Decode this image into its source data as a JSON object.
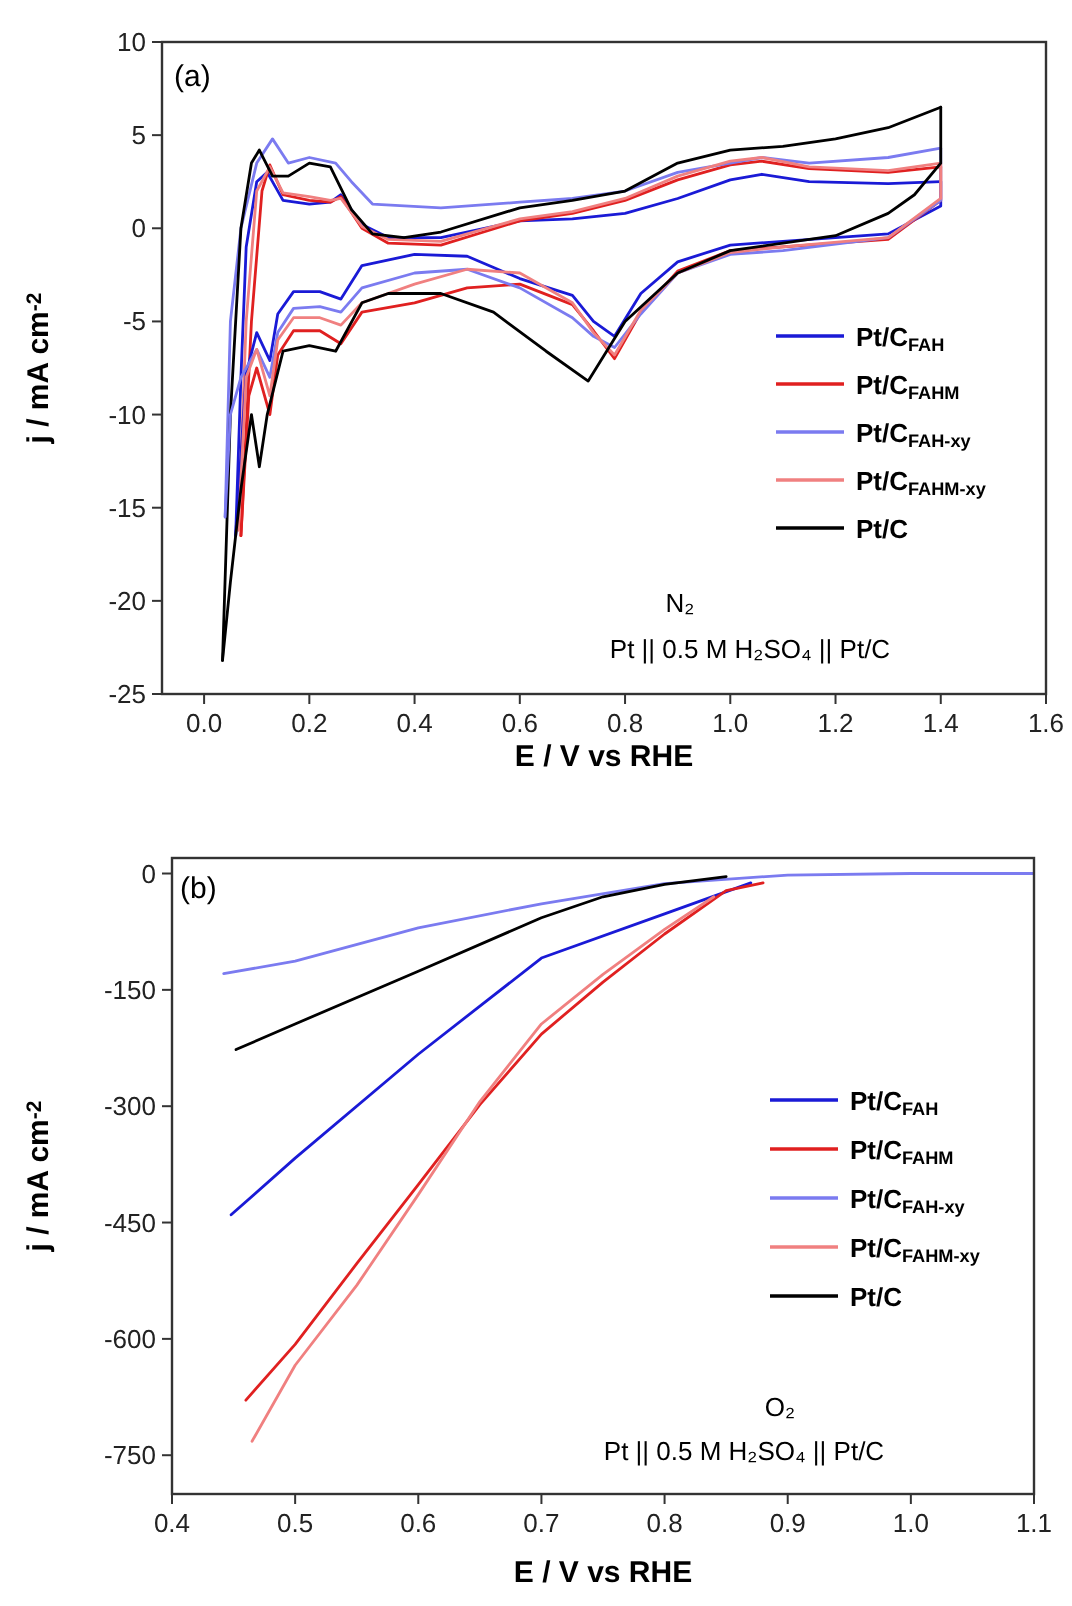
{
  "chart_data": [
    {
      "type": "line",
      "xlabel": "E / V vs RHE",
      "ylabel": "j / mA cm$^{-2}$",
      "xlim": [
        -0.08,
        1.6
      ],
      "ylim": [
        -25,
        10
      ],
      "xticks": [
        {
          "value": 0,
          "label": "0.0"
        },
        {
          "value": 0.2,
          "label": "0.2"
        },
        {
          "value": 0.4,
          "label": "0.4"
        },
        {
          "value": 0.6,
          "label": "0.6"
        },
        {
          "value": 0.8,
          "label": "0.8"
        },
        {
          "value": 1,
          "label": "1.0"
        },
        {
          "value": 1.2,
          "label": "1.2"
        },
        {
          "value": 1.4,
          "label": "1.4"
        },
        {
          "value": 1.6,
          "label": "1.6"
        }
      ],
      "yticks": [
        -25,
        -20,
        -15,
        -10,
        -5,
        0,
        5,
        10
      ],
      "grid": false,
      "legend": "right",
      "marker": "none",
      "line_style": "solid",
      "annotations": [
        "(a)",
        "N₂",
        "Pt || 0.5 M H₂SO₄ || Pt/C"
      ],
      "series": [
        {
          "name": "Pt/C$_{FAH}$",
          "color": "#1a1ad6",
          "x": [
            0.06,
            0.07,
            0.08,
            0.1,
            0.12,
            0.15,
            0.2,
            0.24,
            0.26,
            0.3,
            0.35,
            0.45,
            0.6,
            0.7,
            0.8,
            0.9,
            1.0,
            1.06,
            1.15,
            1.3,
            1.4
          ],
          "values": [
            -16.5,
            -8,
            -1,
            2.5,
            3.0,
            1.5,
            1.3,
            1.4,
            1.8,
            0.2,
            -0.5,
            -0.5,
            0.4,
            0.5,
            0.8,
            1.6,
            2.6,
            2.9,
            2.5,
            2.4,
            2.5
          ]
        },
        {
          "name": "Pt/C$_{FAHM}$",
          "color": "#e02020",
          "x": [
            0.07,
            0.09,
            0.11,
            0.125,
            0.15,
            0.2,
            0.24,
            0.26,
            0.3,
            0.35,
            0.45,
            0.6,
            0.7,
            0.8,
            0.9,
            1.0,
            1.06,
            1.15,
            1.3,
            1.4
          ],
          "values": [
            -16.5,
            -5,
            2,
            3.4,
            1.8,
            1.5,
            1.4,
            1.7,
            0.0,
            -0.8,
            -0.9,
            0.4,
            0.8,
            1.5,
            2.6,
            3.4,
            3.6,
            3.2,
            3.0,
            3.3
          ]
        },
        {
          "name": "Pt/C$_{FAH-xy}$",
          "color": "#7b7bf0",
          "x": [
            0.04,
            0.05,
            0.07,
            0.1,
            0.13,
            0.16,
            0.2,
            0.25,
            0.28,
            0.32,
            0.45,
            0.6,
            0.7,
            0.8,
            0.9,
            1.0,
            1.06,
            1.15,
            1.3,
            1.4
          ],
          "values": [
            -15.5,
            -5,
            0,
            3.5,
            4.8,
            3.5,
            3.8,
            3.5,
            2.5,
            1.3,
            1.1,
            1.4,
            1.6,
            2.0,
            3.0,
            3.5,
            3.8,
            3.5,
            3.8,
            4.3
          ]
        },
        {
          "name": "Pt/C$_{FAHM-xy}$",
          "color": "#f08080",
          "x": [
            0.065,
            0.08,
            0.1,
            0.125,
            0.15,
            0.2,
            0.24,
            0.26,
            0.3,
            0.35,
            0.45,
            0.6,
            0.7,
            0.8,
            0.9,
            1.0,
            1.06,
            1.15,
            1.3,
            1.4
          ],
          "values": [
            -16.2,
            -5,
            2,
            3.3,
            1.9,
            1.7,
            1.5,
            1.6,
            0.1,
            -0.6,
            -0.7,
            0.5,
            0.9,
            1.6,
            2.8,
            3.6,
            3.8,
            3.3,
            3.1,
            3.5
          ]
        },
        {
          "name": "Pt/C",
          "color": "#000000",
          "x": [
            0.035,
            0.05,
            0.07,
            0.09,
            0.105,
            0.13,
            0.16,
            0.2,
            0.24,
            0.28,
            0.32,
            0.38,
            0.45,
            0.6,
            0.7,
            0.8,
            0.9,
            1.0,
            1.1,
            1.2,
            1.3,
            1.4
          ],
          "values": [
            -23.2,
            -10,
            0,
            3.5,
            4.2,
            2.8,
            2.8,
            3.5,
            3.3,
            1.0,
            -0.3,
            -0.5,
            -0.2,
            1.1,
            1.5,
            2.0,
            3.5,
            4.2,
            4.4,
            4.8,
            5.4,
            6.5
          ]
        },
        {
          "color": "#1a1ad6",
          "x": [
            0.06,
            0.08,
            0.1,
            0.125,
            0.14,
            0.17,
            0.22,
            0.26,
            0.3,
            0.4,
            0.5,
            0.6,
            0.7,
            0.74,
            0.78,
            0.83,
            0.9,
            1.0,
            1.1,
            1.3,
            1.4,
            1.4
          ],
          "values": [
            -16.5,
            -7.8,
            -5.6,
            -7.1,
            -4.6,
            -3.4,
            -3.4,
            -3.8,
            -2.0,
            -1.4,
            -1.5,
            -2.7,
            -3.6,
            -5,
            -5.8,
            -3.5,
            -1.8,
            -0.9,
            -0.7,
            -0.3,
            1.2,
            2.5
          ]
        },
        {
          "color": "#e02020",
          "x": [
            0.07,
            0.085,
            0.1,
            0.125,
            0.14,
            0.17,
            0.22,
            0.26,
            0.3,
            0.4,
            0.5,
            0.6,
            0.7,
            0.74,
            0.78,
            0.83,
            0.9,
            1.0,
            1.1,
            1.3,
            1.4,
            1.4
          ],
          "values": [
            -16.5,
            -9,
            -7.5,
            -10.0,
            -6.8,
            -5.5,
            -5.5,
            -6.2,
            -4.5,
            -4.0,
            -3.2,
            -3.0,
            -4.1,
            -5.5,
            -7.0,
            -4.5,
            -2.3,
            -1.2,
            -1.0,
            -0.6,
            1.5,
            3.3
          ]
        },
        {
          "color": "#7b7bf0",
          "x": [
            0.04,
            0.05,
            0.07,
            0.1,
            0.125,
            0.14,
            0.17,
            0.22,
            0.26,
            0.3,
            0.4,
            0.5,
            0.6,
            0.7,
            0.74,
            0.78,
            0.83,
            0.9,
            1.0,
            1.1,
            1.3,
            1.4,
            1.4
          ],
          "values": [
            -15.5,
            -10,
            -8,
            -6.5,
            -8.0,
            -5.6,
            -4.3,
            -4.2,
            -4.5,
            -3.2,
            -2.4,
            -2.2,
            -3.2,
            -4.8,
            -5.8,
            -6.4,
            -4.6,
            -2.4,
            -1.4,
            -1.2,
            -0.5,
            1.5,
            4.3
          ]
        },
        {
          "color": "#f08080",
          "x": [
            0.065,
            0.08,
            0.1,
            0.125,
            0.14,
            0.17,
            0.22,
            0.26,
            0.3,
            0.4,
            0.5,
            0.6,
            0.7,
            0.74,
            0.78,
            0.83,
            0.9,
            1.0,
            1.1,
            1.3,
            1.4,
            1.4
          ],
          "values": [
            -16.2,
            -8,
            -6.5,
            -9.0,
            -6.0,
            -4.8,
            -4.8,
            -5.2,
            -4.0,
            -3.0,
            -2.2,
            -2.4,
            -4.0,
            -5.6,
            -6.8,
            -4.4,
            -2.4,
            -1.3,
            -1.0,
            -0.5,
            1.6,
            3.5
          ]
        },
        {
          "color": "#000000",
          "x": [
            0.035,
            0.05,
            0.07,
            0.09,
            0.105,
            0.12,
            0.15,
            0.2,
            0.25,
            0.3,
            0.35,
            0.45,
            0.55,
            0.65,
            0.73,
            0.8,
            0.9,
            1.0,
            1.2,
            1.3,
            1.35,
            1.4,
            1.4
          ],
          "values": [
            -23.2,
            -19,
            -14,
            -10,
            -12.8,
            -10,
            -6.6,
            -6.3,
            -6.6,
            -4.0,
            -3.5,
            -3.5,
            -4.5,
            -6.6,
            -8.2,
            -5.0,
            -2.4,
            -1.2,
            -0.4,
            0.8,
            1.8,
            3.5,
            6.5
          ]
        }
      ]
    },
    {
      "type": "line",
      "xlabel": "E / V vs RHE",
      "ylabel": "j / mA cm$^{-2}$",
      "xlim": [
        0.4,
        1.1
      ],
      "ylim": [
        -800,
        20
      ],
      "xticks": [
        0.4,
        0.5,
        0.6,
        0.7,
        0.8,
        0.9,
        {
          "value": 1,
          "label": "1.0"
        },
        1.1
      ],
      "yticks": [
        -750,
        -600,
        -450,
        -300,
        -150,
        0
      ],
      "grid": false,
      "legend": "right",
      "marker": "none",
      "line_style": "solid",
      "annotations": [
        "(b)",
        "O₂",
        "Pt || 0.5 M H₂SO₄ || Pt/C"
      ],
      "series": [
        {
          "name": "Pt/C$_{FAH}$",
          "color": "#1a1ad6",
          "x": [
            0.448,
            0.5,
            0.6,
            0.7,
            0.8,
            0.87
          ],
          "values": [
            -440,
            -367,
            -233,
            -109,
            -52,
            -12
          ]
        },
        {
          "name": "Pt/C$_{FAHM}$",
          "color": "#e02020",
          "x": [
            0.46,
            0.5,
            0.55,
            0.6,
            0.65,
            0.7,
            0.75,
            0.8,
            0.85,
            0.88
          ],
          "values": [
            -679,
            -607,
            -503,
            -401,
            -298,
            -207,
            -140,
            -78,
            -22,
            -12
          ]
        },
        {
          "name": "Pt/C$_{FAH-xy}$",
          "color": "#7b7bf0",
          "x": [
            0.442,
            0.5,
            0.6,
            0.7,
            0.8,
            0.9,
            1.0,
            1.1
          ],
          "values": [
            -129,
            -113,
            -70,
            -39,
            -13,
            -2,
            0,
            0
          ]
        },
        {
          "name": "Pt/C$_{FAHM-xy}$",
          "color": "#f08080",
          "x": [
            0.465,
            0.5,
            0.55,
            0.6,
            0.65,
            0.7,
            0.75,
            0.8,
            0.84
          ],
          "values": [
            -732,
            -634,
            -531,
            -414,
            -294,
            -194,
            -130,
            -72,
            -30
          ]
        },
        {
          "name": "Pt/C",
          "color": "#000000",
          "x": [
            0.452,
            0.5,
            0.6,
            0.7,
            0.75,
            0.8,
            0.85
          ],
          "values": [
            -227,
            -194,
            -126,
            -57,
            -30,
            -14,
            -4
          ]
        }
      ]
    }
  ]
}
